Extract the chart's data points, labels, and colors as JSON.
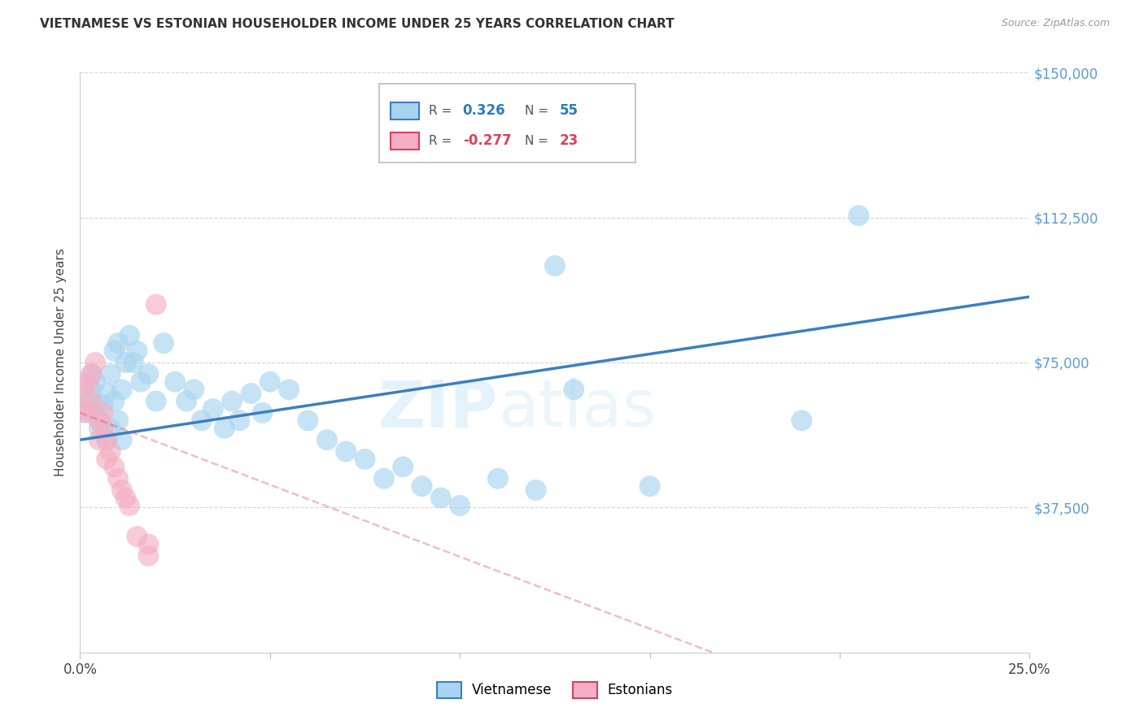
{
  "title": "VIETNAMESE VS ESTONIAN HOUSEHOLDER INCOME UNDER 25 YEARS CORRELATION CHART",
  "source": "Source: ZipAtlas.com",
  "ylabel": "Householder Income Under 25 years",
  "watermark_zip": "ZIP",
  "watermark_atlas": "atlas",
  "x_min": 0.0,
  "x_max": 0.25,
  "y_min": 0,
  "y_max": 150000,
  "viet_color": "#a8d4f0",
  "est_color": "#f4afc4",
  "viet_line_color": "#3a7fc1",
  "est_line_color": "#d94060",
  "background_color": "#ffffff",
  "grid_color": "#d0d0d0",
  "viet_x": [
    0.001,
    0.002,
    0.003,
    0.003,
    0.004,
    0.004,
    0.005,
    0.005,
    0.006,
    0.007,
    0.007,
    0.008,
    0.008,
    0.009,
    0.009,
    0.01,
    0.01,
    0.011,
    0.011,
    0.012,
    0.013,
    0.014,
    0.015,
    0.016,
    0.018,
    0.02,
    0.022,
    0.025,
    0.028,
    0.03,
    0.032,
    0.035,
    0.038,
    0.04,
    0.042,
    0.045,
    0.048,
    0.05,
    0.055,
    0.06,
    0.065,
    0.07,
    0.075,
    0.08,
    0.085,
    0.09,
    0.095,
    0.1,
    0.11,
    0.12,
    0.125,
    0.13,
    0.15,
    0.19,
    0.205
  ],
  "viet_y": [
    62000,
    65000,
    68000,
    72000,
    63000,
    70000,
    60000,
    58000,
    64000,
    67000,
    55000,
    72000,
    58000,
    65000,
    78000,
    80000,
    60000,
    68000,
    55000,
    75000,
    82000,
    75000,
    78000,
    70000,
    72000,
    65000,
    80000,
    70000,
    65000,
    68000,
    60000,
    63000,
    58000,
    65000,
    60000,
    67000,
    62000,
    70000,
    68000,
    60000,
    55000,
    52000,
    50000,
    45000,
    48000,
    43000,
    40000,
    38000,
    45000,
    42000,
    100000,
    68000,
    43000,
    60000,
    113000
  ],
  "est_x": [
    0.001,
    0.001,
    0.002,
    0.002,
    0.003,
    0.003,
    0.004,
    0.005,
    0.005,
    0.006,
    0.006,
    0.007,
    0.007,
    0.008,
    0.009,
    0.01,
    0.011,
    0.012,
    0.013,
    0.015,
    0.018,
    0.018,
    0.02
  ],
  "est_y": [
    63000,
    68000,
    62000,
    70000,
    65000,
    72000,
    75000,
    55000,
    60000,
    58000,
    62000,
    55000,
    50000,
    52000,
    48000,
    45000,
    42000,
    40000,
    38000,
    30000,
    25000,
    28000,
    90000
  ]
}
